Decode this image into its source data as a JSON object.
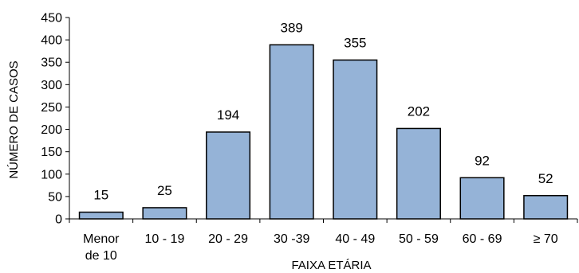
{
  "chart_data": {
    "type": "bar",
    "title": "",
    "xlabel": "FAIXA ETÁRIA",
    "ylabel": "NÚMERO DE CASOS",
    "categories": [
      [
        "Menor",
        "de 10"
      ],
      [
        "10 - 19"
      ],
      [
        "20 - 29"
      ],
      [
        "30 -39"
      ],
      [
        "40 - 49"
      ],
      [
        "50 - 59"
      ],
      [
        "60 - 69"
      ],
      [
        "≥ 70"
      ]
    ],
    "values": [
      15,
      25,
      194,
      389,
      355,
      202,
      92,
      52
    ],
    "data_labels": [
      "15",
      "25",
      "194",
      "389",
      "355",
      "202",
      "92",
      "52"
    ],
    "ylim": [
      0,
      450
    ],
    "yticks": [
      0,
      50,
      100,
      150,
      200,
      250,
      300,
      350,
      400,
      450
    ],
    "grid": false,
    "legend": "none",
    "colors": {
      "bar_fill": "#95b3d7",
      "bar_stroke": "#000000",
      "axis": "#000000",
      "text": "#000000"
    }
  }
}
